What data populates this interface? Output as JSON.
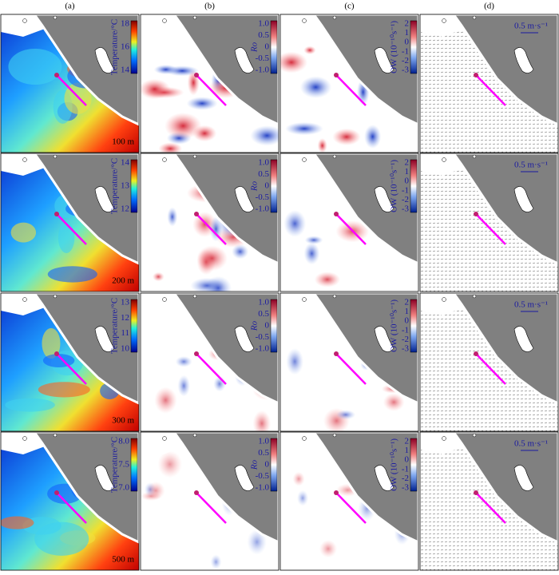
{
  "columns": [
    "(a)",
    "(b)",
    "(c)",
    "(d)"
  ],
  "rows": [
    {
      "depth": "100 m",
      "temperature_ticks": [
        "18",
        "16",
        "14"
      ]
    },
    {
      "depth": "200 m",
      "temperature_ticks": [
        "14",
        "13",
        "12"
      ]
    },
    {
      "depth": "300 m",
      "temperature_ticks": [
        "13",
        "12",
        "11",
        "10"
      ]
    },
    {
      "depth": "500 m",
      "temperature_ticks": [
        "8.0",
        "7.5",
        "7.0"
      ]
    }
  ],
  "temperature_label": "Temperature/°C",
  "ro_label": "Ro",
  "ro_ticks": [
    "1.0",
    "0.5",
    "0",
    "-0.5",
    "-1.0"
  ],
  "ow_label": "OW (10⁻¹⁰s⁻¹)",
  "ow_ticks": [
    "2",
    "1",
    "0",
    "-1",
    "-2",
    "-3"
  ],
  "scale_label": "0.5 m·s⁻¹"
}
